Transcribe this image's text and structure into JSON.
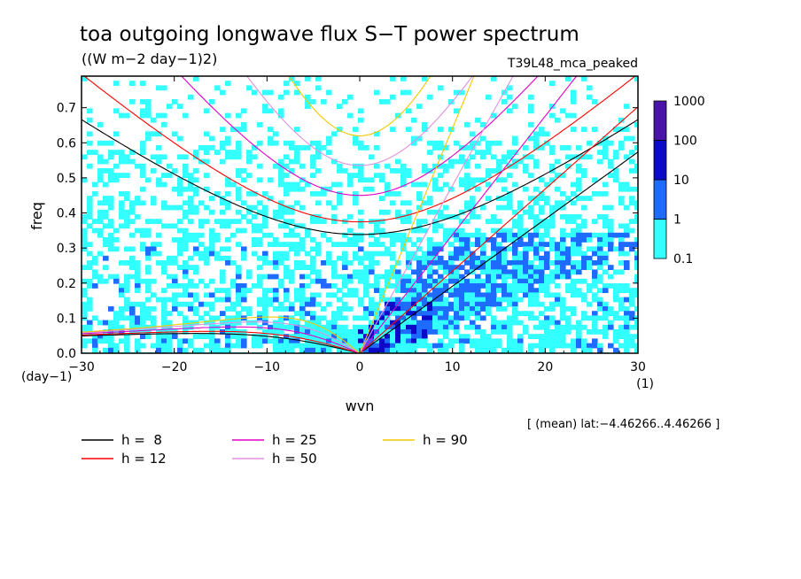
{
  "chart_data": {
    "type": "heatmap",
    "title": "toa outgoing longwave flux S−T power spectrum",
    "subtitle": "((W m−2 day−1)2)",
    "run_label": "T39L48_mca_peaked",
    "xlabel": "wvn",
    "ylabel": "freq",
    "x_unit": "(1)",
    "y_unit": "(day−1)",
    "xlim": [
      -30,
      30
    ],
    "ylim": [
      0,
      0.79
    ],
    "x_ticks": [
      -30,
      -20,
      -10,
      0,
      10,
      20,
      30
    ],
    "x_tick_labels": [
      "−30",
      "−20",
      "−10",
      "0",
      "10",
      "20",
      "30"
    ],
    "y_ticks": [
      0,
      0.1,
      0.2,
      0.3,
      0.4,
      0.5,
      0.6,
      0.7
    ],
    "y_tick_labels": [
      "0.0",
      "0.1",
      "0.2",
      "0.3",
      "0.4",
      "0.5",
      "0.6",
      "0.7"
    ],
    "colorbar": {
      "scale": "log",
      "levels": [
        0.1,
        1,
        10,
        100,
        1000
      ],
      "labels": [
        "0.1",
        "1",
        "10",
        "100",
        "1000"
      ],
      "colors": [
        "#33ffff",
        "#1e6cff",
        "#0a0ac8",
        "#4b14a8"
      ]
    },
    "domain_note": "[ (mean) lat:−4.46266..4.46266 ]",
    "series": [
      {
        "name": "h =  8",
        "color": "#000000",
        "h": 8
      },
      {
        "name": "h = 12",
        "color": "#ff0000",
        "h": 12
      },
      {
        "name": "h = 25",
        "color": "#e000c8",
        "h": 25
      },
      {
        "name": "h = 50",
        "color": "#e090e0",
        "h": 50
      },
      {
        "name": "h = 90",
        "color": "#f0c800",
        "h": 90
      }
    ]
  }
}
